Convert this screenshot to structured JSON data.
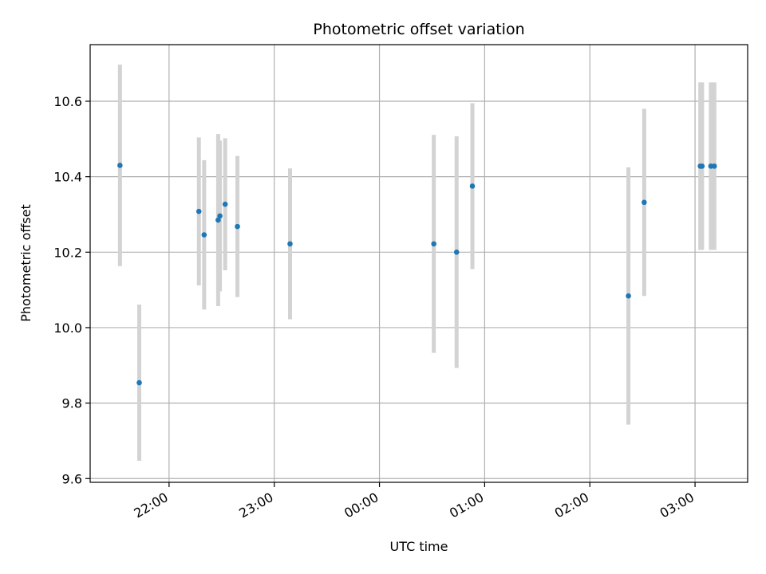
{
  "chart_data": {
    "type": "scatter",
    "title": "Photometric offset variation",
    "xlabel": "UTC time",
    "ylabel": "Photometric offset",
    "x_is_time": true,
    "xlim": [
      "21:15",
      "03:30"
    ],
    "ylim": [
      9.59,
      10.75
    ],
    "x_ticks": [
      "22:00",
      "23:00",
      "00:00",
      "01:00",
      "02:00",
      "03:00"
    ],
    "y_ticks": [
      "9.6",
      "9.8",
      "10.0",
      "10.2",
      "10.4",
      "10.6"
    ],
    "grid": true,
    "errorbar_color": "#d3d3d3",
    "marker_color": "#1f77b4",
    "points": [
      {
        "time": "21:32",
        "y": 10.43,
        "err": 0.267
      },
      {
        "time": "21:43",
        "y": 9.854,
        "err": 0.207
      },
      {
        "time": "22:17",
        "y": 10.308,
        "err": 0.196
      },
      {
        "time": "22:20",
        "y": 10.246,
        "err": 0.198
      },
      {
        "time": "22:28",
        "y": 10.285,
        "err": 0.228
      },
      {
        "time": "22:29",
        "y": 10.296,
        "err": 0.2
      },
      {
        "time": "22:32",
        "y": 10.327,
        "err": 0.175
      },
      {
        "time": "22:39",
        "y": 10.268,
        "err": 0.187
      },
      {
        "time": "23:09",
        "y": 10.222,
        "err": 0.2
      },
      {
        "time": "00:31",
        "y": 10.222,
        "err": 0.289
      },
      {
        "time": "00:44",
        "y": 10.2,
        "err": 0.307
      },
      {
        "time": "00:53",
        "y": 10.375,
        "err": 0.22
      },
      {
        "time": "02:22",
        "y": 10.084,
        "err": 0.341
      },
      {
        "time": "02:31",
        "y": 10.332,
        "err": 0.248
      },
      {
        "time": "03:03",
        "y": 10.428,
        "err": 0.222
      },
      {
        "time": "03:04",
        "y": 10.428,
        "err": 0.222
      },
      {
        "time": "03:09",
        "y": 10.428,
        "err": 0.222
      },
      {
        "time": "03:11",
        "y": 10.428,
        "err": 0.222
      }
    ]
  }
}
